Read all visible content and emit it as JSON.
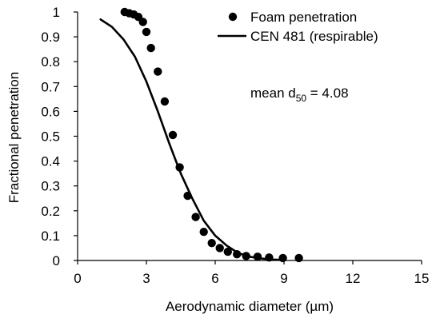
{
  "chart_data": {
    "type": "scatter",
    "xlabel": "Aerodynamic diameter (µm)",
    "ylabel": "Fractional penetration",
    "xlim": [
      0,
      15
    ],
    "ylim": [
      0,
      1
    ],
    "xticks": [
      0,
      3,
      6,
      9,
      12,
      15
    ],
    "xtick_labels": [
      "0",
      "3",
      "6",
      "9",
      "12",
      "15"
    ],
    "yticks": [
      0,
      0.1,
      0.2,
      0.3,
      0.4,
      0.5,
      0.6,
      0.7,
      0.8,
      0.9,
      1
    ],
    "ytick_labels": [
      "0",
      "0.1",
      "0.2",
      "0.3",
      "0.4",
      "0.5",
      "0.6",
      "0.7",
      "0.8",
      "0.9",
      "1"
    ],
    "grid": false,
    "legend_position": "top-right",
    "annotation": {
      "prefix": "mean d",
      "subscript": "50",
      "suffix": " = 4.08"
    },
    "series": [
      {
        "name": "Foam penetration",
        "kind": "markers",
        "color": "#000000",
        "x": [
          2.05,
          2.25,
          2.45,
          2.65,
          2.85,
          3.0,
          3.2,
          3.5,
          3.8,
          4.15,
          4.45,
          4.8,
          5.15,
          5.5,
          5.85,
          6.2,
          6.55,
          6.95,
          7.35,
          7.85,
          8.35,
          8.95,
          9.65
        ],
        "y": [
          1.0,
          0.995,
          0.99,
          0.98,
          0.96,
          0.92,
          0.855,
          0.76,
          0.64,
          0.505,
          0.375,
          0.26,
          0.175,
          0.115,
          0.07,
          0.05,
          0.035,
          0.025,
          0.018,
          0.015,
          0.012,
          0.01,
          0.01
        ]
      },
      {
        "name": "CEN 481 (respirable)",
        "kind": "line",
        "color": "#000000",
        "x": [
          1.0,
          1.5,
          2.0,
          2.5,
          3.0,
          3.5,
          4.0,
          4.25,
          4.5,
          5.0,
          5.5,
          6.0,
          6.5,
          7.0,
          7.5,
          8.0,
          8.5,
          9.0
        ],
        "y": [
          0.97,
          0.94,
          0.89,
          0.82,
          0.72,
          0.6,
          0.47,
          0.41,
          0.35,
          0.25,
          0.16,
          0.1,
          0.06,
          0.03,
          0.015,
          0.008,
          0.004,
          0.002
        ]
      }
    ]
  }
}
